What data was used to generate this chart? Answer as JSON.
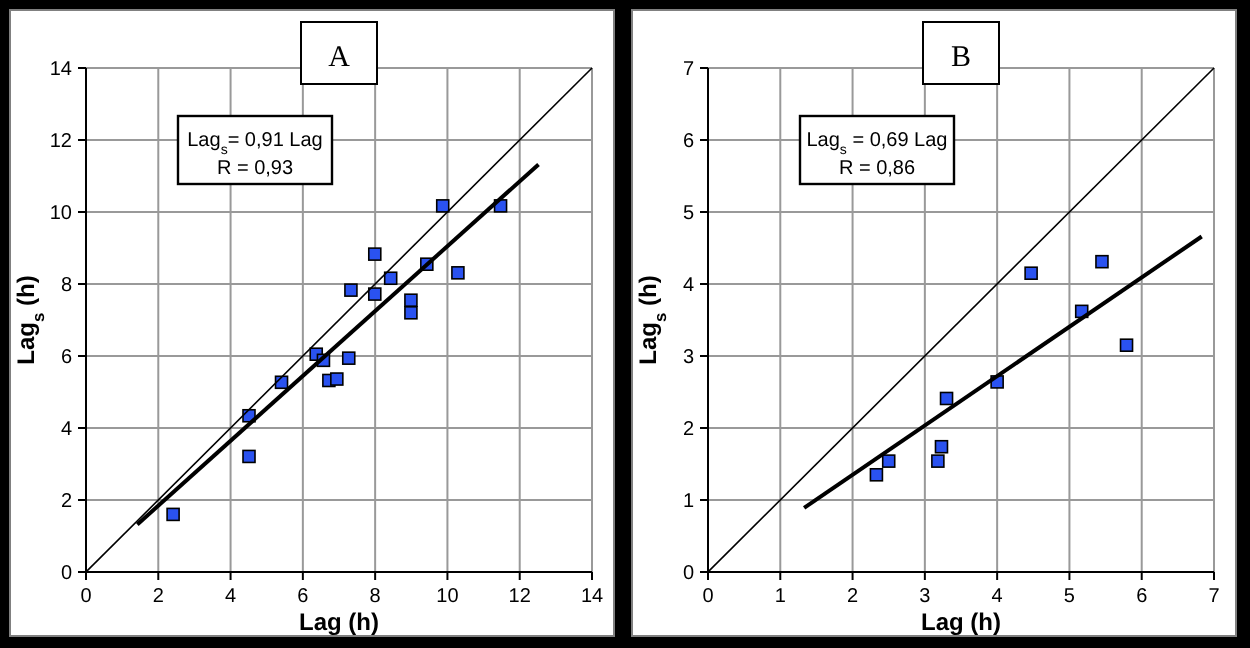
{
  "chart_data": [
    {
      "type": "scatter",
      "title": "A",
      "xlabel": "Lag (h)",
      "ylabel": "Lag$_{s}$ (h)",
      "annotations": [
        "Lag$_{s}$= 0,91 Lag",
        "R = 0,93"
      ],
      "xlim": [
        0,
        14
      ],
      "ylim": [
        0,
        14
      ],
      "xticks": [
        0,
        2,
        4,
        6,
        8,
        10,
        12,
        14
      ],
      "yticks": [
        0,
        2,
        4,
        6,
        8,
        10,
        12,
        14
      ],
      "grid": true,
      "series": [
        {
          "color": "#2a52f0",
          "marker": "square",
          "x": [
            2.41,
            4.51,
            4.51,
            5.41,
            6.37,
            6.57,
            6.72,
            6.94,
            7.27,
            7.33,
            7.99,
            7.99,
            8.43,
            8.99,
            8.99,
            9.43,
            9.87,
            10.29,
            11.47
          ],
          "values": [
            1.6,
            4.34,
            3.21,
            5.27,
            6.05,
            5.88,
            5.32,
            5.36,
            5.94,
            7.83,
            8.83,
            7.72,
            8.16,
            7.55,
            7.2,
            8.55,
            10.17,
            8.31,
            10.17
          ]
        },
        {
          "type": "line",
          "color": "#000000",
          "x": [
            1.42,
            12.52
          ],
          "values": [
            1.32,
            11.32
          ]
        },
        {
          "type": "line",
          "color": "#000000",
          "x": [
            0,
            14
          ],
          "values": [
            0,
            14
          ]
        }
      ]
    },
    {
      "type": "scatter",
      "title": "B",
      "xlabel": "Lag (h)",
      "ylabel": "Lag$_{s}$ (h)",
      "annotations": [
        "Lag$_{s}$ = 0,69 Lag",
        "R = 0,86"
      ],
      "xlim": [
        0,
        7
      ],
      "ylim": [
        0,
        7
      ],
      "xticks": [
        0,
        1,
        2,
        3,
        4,
        5,
        6,
        7
      ],
      "yticks": [
        0,
        1,
        2,
        3,
        4,
        5,
        6,
        7
      ],
      "grid": true,
      "series": [
        {
          "color": "#2a52f0",
          "marker": "square",
          "x": [
            2.33,
            2.5,
            3.18,
            3.23,
            3.3,
            4.0,
            4.47,
            5.17,
            5.45,
            5.79
          ],
          "values": [
            1.35,
            1.54,
            1.54,
            1.74,
            2.41,
            2.64,
            4.15,
            3.62,
            4.31,
            3.15
          ]
        },
        {
          "type": "line",
          "color": "#000000",
          "x": [
            1.33,
            6.83
          ],
          "values": [
            0.89,
            4.66
          ]
        },
        {
          "type": "line",
          "color": "#000000",
          "x": [
            0,
            7
          ],
          "values": [
            0,
            7
          ]
        }
      ]
    }
  ]
}
